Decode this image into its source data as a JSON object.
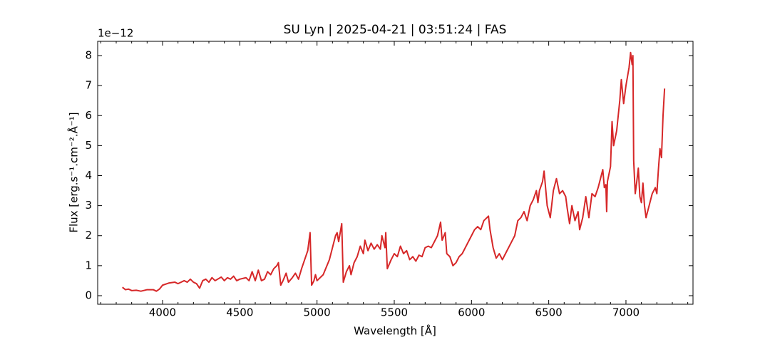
{
  "chart_data": {
    "type": "line",
    "title": "SU Lyn | 2025-04-21 | 03:51:24 | FAS",
    "x_label": "Wavelength [Å]",
    "y_label": "Flux [erg.s⁻¹.cm⁻².Å⁻¹]",
    "y_offset_label": "1e−12",
    "color": "#d62728",
    "x": [
      3740,
      3760,
      3780,
      3800,
      3830,
      3860,
      3900,
      3940,
      3960,
      3980,
      4000,
      4040,
      4080,
      4100,
      4140,
      4160,
      4180,
      4200,
      4220,
      4240,
      4260,
      4280,
      4300,
      4320,
      4340,
      4380,
      4400,
      4420,
      4440,
      4460,
      4480,
      4500,
      4540,
      4560,
      4580,
      4600,
      4620,
      4640,
      4660,
      4680,
      4700,
      4720,
      4740,
      4750,
      4765,
      4780,
      4800,
      4815,
      4840,
      4860,
      4880,
      4900,
      4920,
      4940,
      4955,
      4965,
      4980,
      4990,
      5000,
      5040,
      5080,
      5100,
      5120,
      5130,
      5140,
      5160,
      5170,
      5190,
      5210,
      5220,
      5240,
      5260,
      5280,
      5300,
      5310,
      5330,
      5350,
      5370,
      5390,
      5410,
      5420,
      5440,
      5445,
      5455,
      5480,
      5500,
      5520,
      5540,
      5560,
      5580,
      5600,
      5620,
      5640,
      5660,
      5680,
      5700,
      5720,
      5740,
      5760,
      5780,
      5800,
      5810,
      5830,
      5840,
      5860,
      5880,
      5900,
      5920,
      5940,
      5960,
      5980,
      6000,
      6020,
      6040,
      6060,
      6080,
      6100,
      6110,
      6120,
      6140,
      6160,
      6180,
      6200,
      6220,
      6240,
      6260,
      6280,
      6300,
      6320,
      6340,
      6360,
      6380,
      6400,
      6420,
      6430,
      6440,
      6460,
      6470,
      6490,
      6510,
      6530,
      6550,
      6570,
      6590,
      6610,
      6620,
      6635,
      6650,
      6670,
      6690,
      6700,
      6720,
      6740,
      6760,
      6780,
      6800,
      6820,
      6840,
      6850,
      6860,
      6870,
      6875,
      6880,
      6900,
      6910,
      6920,
      6940,
      6960,
      6970,
      6985,
      7000,
      7020,
      7030,
      7040,
      7045,
      7050,
      7060,
      7070,
      7080,
      7090,
      7100,
      7110,
      7120,
      7130,
      7150,
      7170,
      7190,
      7200,
      7210,
      7220,
      7230,
      7240,
      7250
    ],
    "values": [
      0.28,
      0.2,
      0.22,
      0.17,
      0.18,
      0.15,
      0.2,
      0.2,
      0.15,
      0.22,
      0.35,
      0.42,
      0.45,
      0.4,
      0.5,
      0.45,
      0.55,
      0.45,
      0.4,
      0.25,
      0.5,
      0.55,
      0.45,
      0.6,
      0.5,
      0.62,
      0.5,
      0.6,
      0.55,
      0.65,
      0.5,
      0.55,
      0.6,
      0.5,
      0.8,
      0.5,
      0.85,
      0.5,
      0.55,
      0.8,
      0.7,
      0.9,
      1.0,
      1.1,
      0.35,
      0.5,
      0.75,
      0.45,
      0.6,
      0.75,
      0.55,
      0.9,
      1.2,
      1.5,
      2.1,
      0.35,
      0.5,
      0.7,
      0.5,
      0.7,
      1.2,
      1.6,
      2.0,
      2.1,
      1.8,
      2.4,
      0.45,
      0.8,
      1.0,
      0.7,
      1.1,
      1.3,
      1.65,
      1.4,
      1.85,
      1.5,
      1.75,
      1.55,
      1.7,
      1.55,
      2.0,
      1.6,
      2.1,
      0.9,
      1.2,
      1.4,
      1.3,
      1.65,
      1.4,
      1.5,
      1.2,
      1.3,
      1.15,
      1.35,
      1.3,
      1.6,
      1.65,
      1.6,
      1.8,
      2.0,
      2.45,
      1.85,
      2.1,
      1.4,
      1.3,
      1.0,
      1.1,
      1.3,
      1.4,
      1.6,
      1.8,
      2.0,
      2.2,
      2.3,
      2.2,
      2.5,
      2.6,
      2.65,
      2.2,
      1.6,
      1.25,
      1.4,
      1.2,
      1.4,
      1.6,
      1.8,
      2.0,
      2.5,
      2.6,
      2.8,
      2.5,
      3.0,
      3.2,
      3.5,
      3.1,
      3.5,
      3.8,
      4.15,
      3.0,
      2.6,
      3.5,
      3.9,
      3.4,
      3.5,
      3.3,
      2.9,
      2.4,
      3.0,
      2.5,
      2.8,
      2.2,
      2.6,
      3.3,
      2.6,
      3.4,
      3.3,
      3.6,
      4.0,
      4.2,
      3.6,
      3.7,
      2.8,
      3.8,
      4.3,
      5.8,
      5.0,
      5.5,
      6.5,
      7.2,
      6.4,
      7.0,
      7.6,
      8.1,
      7.7,
      8.0,
      4.5,
      3.4,
      3.8,
      4.25,
      3.3,
      3.1,
      3.75,
      3.0,
      2.6,
      3.0,
      3.4,
      3.6,
      3.4,
      4.2,
      4.9,
      4.6,
      6.0,
      6.9
    ],
    "xlim": [
      3580,
      7434
    ],
    "ylim": [
      -0.285,
      8.475
    ],
    "xticks": [
      4000,
      4500,
      5000,
      5500,
      6000,
      6500,
      7000
    ],
    "xminorticks": [
      3600,
      3700,
      3800,
      3900,
      4100,
      4200,
      4300,
      4400,
      4600,
      4700,
      4800,
      4900,
      5100,
      5200,
      5300,
      5400,
      5600,
      5700,
      5800,
      5900,
      6100,
      6200,
      6300,
      6400,
      6600,
      6700,
      6800,
      6900,
      7100,
      7200,
      7300,
      7400
    ],
    "yticks": [
      0,
      1,
      2,
      3,
      4,
      5,
      6,
      7,
      8
    ],
    "grid": false
  }
}
